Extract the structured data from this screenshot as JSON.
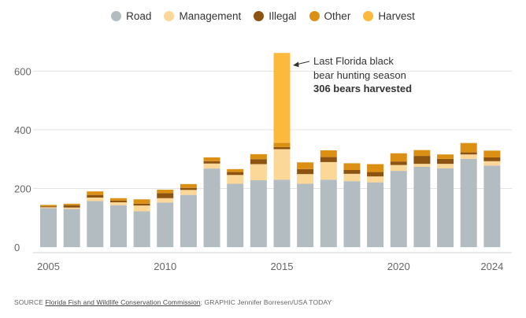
{
  "chart_data": {
    "type": "bar",
    "stacked": true,
    "title": "",
    "xlabel": "",
    "ylabel": "",
    "ylim": [
      0,
      700
    ],
    "yticks": [
      0,
      200,
      400,
      600
    ],
    "xtick_labels": [
      "2005",
      "2010",
      "2015",
      "2020",
      "2024"
    ],
    "categories": [
      "2005",
      "2006",
      "2007",
      "2008",
      "2009",
      "2010",
      "2011",
      "2012",
      "2013",
      "2014",
      "2015",
      "2016",
      "2017",
      "2018",
      "2019",
      "2020",
      "2021",
      "2022",
      "2023",
      "2024"
    ],
    "series": [
      {
        "name": "Road",
        "color": "#b3bcc1",
        "values": [
          133,
          130,
          157,
          143,
          122,
          152,
          178,
          268,
          216,
          228,
          230,
          216,
          230,
          225,
          221,
          260,
          274,
          269,
          301,
          278
        ]
      },
      {
        "name": "Management",
        "color": "#fcd898",
        "values": [
          3,
          5,
          12,
          10,
          20,
          15,
          17,
          17,
          30,
          55,
          104,
          33,
          60,
          25,
          20,
          20,
          10,
          15,
          15,
          15
        ]
      },
      {
        "name": "Illegal",
        "color": "#8c5311",
        "values": [
          3,
          8,
          9,
          6,
          6,
          17,
          7,
          8,
          10,
          17,
          7,
          17,
          17,
          13,
          15,
          12,
          27,
          17,
          7,
          13
        ]
      },
      {
        "name": "Other",
        "color": "#db8f13",
        "values": [
          5,
          5,
          12,
          8,
          15,
          12,
          13,
          13,
          10,
          17,
          15,
          23,
          23,
          23,
          27,
          28,
          20,
          15,
          32,
          23
        ]
      },
      {
        "name": "Harvest",
        "color": "#fcb93c",
        "values": [
          0,
          0,
          0,
          0,
          0,
          0,
          0,
          0,
          0,
          0,
          306,
          0,
          0,
          0,
          0,
          0,
          0,
          0,
          0,
          0
        ]
      }
    ],
    "annotation": {
      "line1": "Last Florida black",
      "line2": "bear hunting season",
      "line3": "306 bears harvested",
      "target_category": "2015"
    }
  },
  "legend": [
    {
      "label": "Road",
      "color": "#b3bcc1"
    },
    {
      "label": "Management",
      "color": "#fcd898"
    },
    {
      "label": "Illegal",
      "color": "#8c5311"
    },
    {
      "label": "Other",
      "color": "#db8f13"
    },
    {
      "label": "Harvest",
      "color": "#fcb93c"
    }
  ],
  "footer": {
    "source_label": "SOURCE",
    "source_link": "Florida Fish and Wildlife Conservation Commission",
    "separator": ";",
    "graphic_text": "GRAPHIC Jennifer Borresen/USA TODAY"
  }
}
